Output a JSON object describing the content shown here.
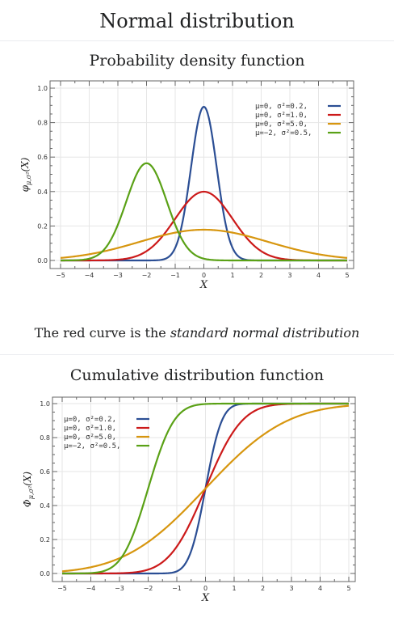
{
  "page": {
    "title": "Normal distribution",
    "caption_prefix": "The red curve is the ",
    "caption_emphasis": "standard normal distribution"
  },
  "colors": {
    "blue": "#2b4e94",
    "red": "#cc1a1a",
    "orange": "#d7960f",
    "green": "#5aa116",
    "grid": "#e6e6e6"
  },
  "chart_data": [
    {
      "type": "line",
      "function": "pdf",
      "title": "Probability density function",
      "xlabel": "X",
      "ylabel": "φ_{μ,σ²}(X)",
      "xlim": [
        -5,
        5
      ],
      "ylim": [
        0,
        1.0
      ],
      "x_ticks": [
        "−5",
        "−4",
        "−3",
        "−2",
        "−1",
        "0",
        "1",
        "2",
        "3",
        "4",
        "5"
      ],
      "y_ticks": [
        "0.0",
        "0.2",
        "0.4",
        "0.6",
        "0.8",
        "1.0"
      ],
      "grid": true,
      "legend_position": "top-right",
      "series": [
        {
          "name": "μ=0,  σ²=0.2,",
          "mu": 0,
          "sigma2": 0.2,
          "color": "#2b4e94",
          "peak": 0.892
        },
        {
          "name": "μ=0,  σ²=1.0,",
          "mu": 0,
          "sigma2": 1.0,
          "color": "#cc1a1a",
          "peak": 0.399
        },
        {
          "name": "μ=0,  σ²=5.0,",
          "mu": 0,
          "sigma2": 5.0,
          "color": "#d7960f",
          "peak": 0.178
        },
        {
          "name": "μ=−2, σ²=0.5,",
          "mu": -2,
          "sigma2": 0.5,
          "color": "#5aa116",
          "peak": 0.564
        }
      ]
    },
    {
      "type": "line",
      "function": "cdf",
      "title": "Cumulative distribution function",
      "xlabel": "X",
      "ylabel": "Φ_{μ,σ²}(X)",
      "xlim": [
        -5,
        5
      ],
      "ylim": [
        0,
        1.0
      ],
      "x_ticks": [
        "−5",
        "−4",
        "−3",
        "−2",
        "−1",
        "0",
        "1",
        "2",
        "3",
        "4",
        "5"
      ],
      "y_ticks": [
        "0.0",
        "0.2",
        "0.4",
        "0.6",
        "0.8",
        "1.0"
      ],
      "grid": true,
      "legend_position": "top-left",
      "series": [
        {
          "name": "μ=0,  σ²=0.2,",
          "mu": 0,
          "sigma2": 0.2,
          "color": "#2b4e94"
        },
        {
          "name": "μ=0,  σ²=1.0,",
          "mu": 0,
          "sigma2": 1.0,
          "color": "#cc1a1a"
        },
        {
          "name": "μ=0,  σ²=5.0,",
          "mu": 0,
          "sigma2": 5.0,
          "color": "#d7960f"
        },
        {
          "name": "μ=−2, σ²=0.5,",
          "mu": -2,
          "sigma2": 0.5,
          "color": "#5aa116"
        }
      ]
    }
  ]
}
